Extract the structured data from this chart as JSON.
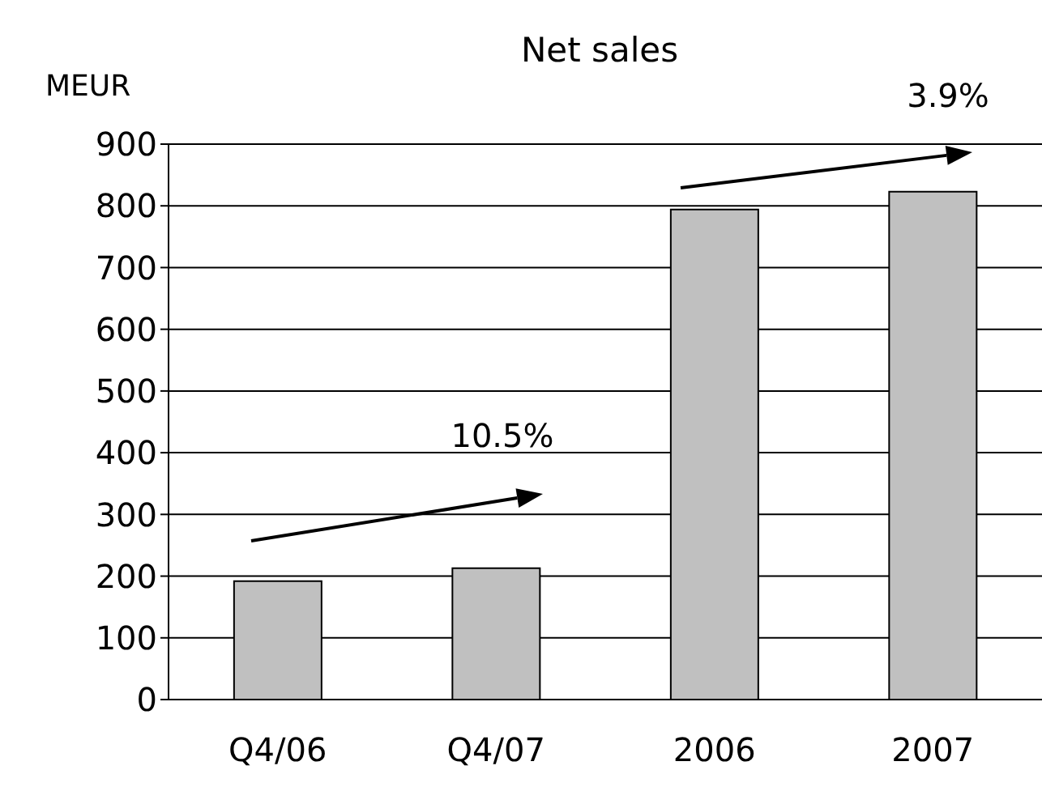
{
  "chart_data": {
    "type": "bar",
    "title": "Net sales",
    "ylabel": "MEUR",
    "categories": [
      "Q4/06",
      "Q4/07",
      "2006",
      "2007"
    ],
    "values": [
      192,
      213,
      794,
      823
    ],
    "color": "#c0c0c0",
    "ylim": [
      0,
      900
    ],
    "yticks": [
      0,
      100,
      200,
      300,
      400,
      500,
      600,
      700,
      800,
      900
    ],
    "grid": "y",
    "annotations": [
      "10.5%",
      "3.9%"
    ]
  }
}
